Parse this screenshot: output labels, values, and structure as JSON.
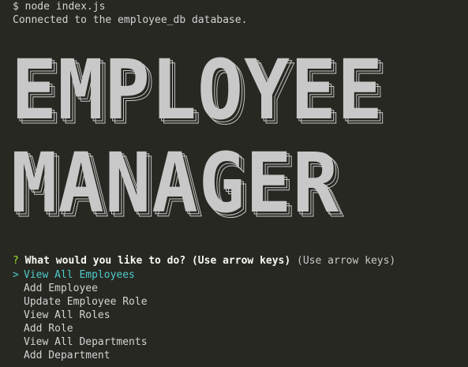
{
  "terminal": {
    "command_line": "$ node index.js",
    "connected_message": "Connected to the employee_db database."
  },
  "banner": {
    "line1": "EMPLOYEE",
    "line2": "MANAGER"
  },
  "prompt": {
    "marker": "?",
    "question": "What would you like to do? (Use arrow keys)",
    "hint": "(Use arrow keys)"
  },
  "menu": {
    "pointer": ">",
    "selected_index": 0,
    "items": [
      {
        "label": "View All Employees"
      },
      {
        "label": "Add Employee"
      },
      {
        "label": "Update Employee Role"
      },
      {
        "label": "View All Roles"
      },
      {
        "label": "Add Role"
      },
      {
        "label": "View All Departments"
      },
      {
        "label": "Add Department"
      }
    ]
  },
  "colors": {
    "background": "#272822",
    "text": "#d4d4d4",
    "prompt_marker": "#a6e22e",
    "selected_item": "#4ec9c9",
    "banner_fill": "#c8c8c8"
  }
}
